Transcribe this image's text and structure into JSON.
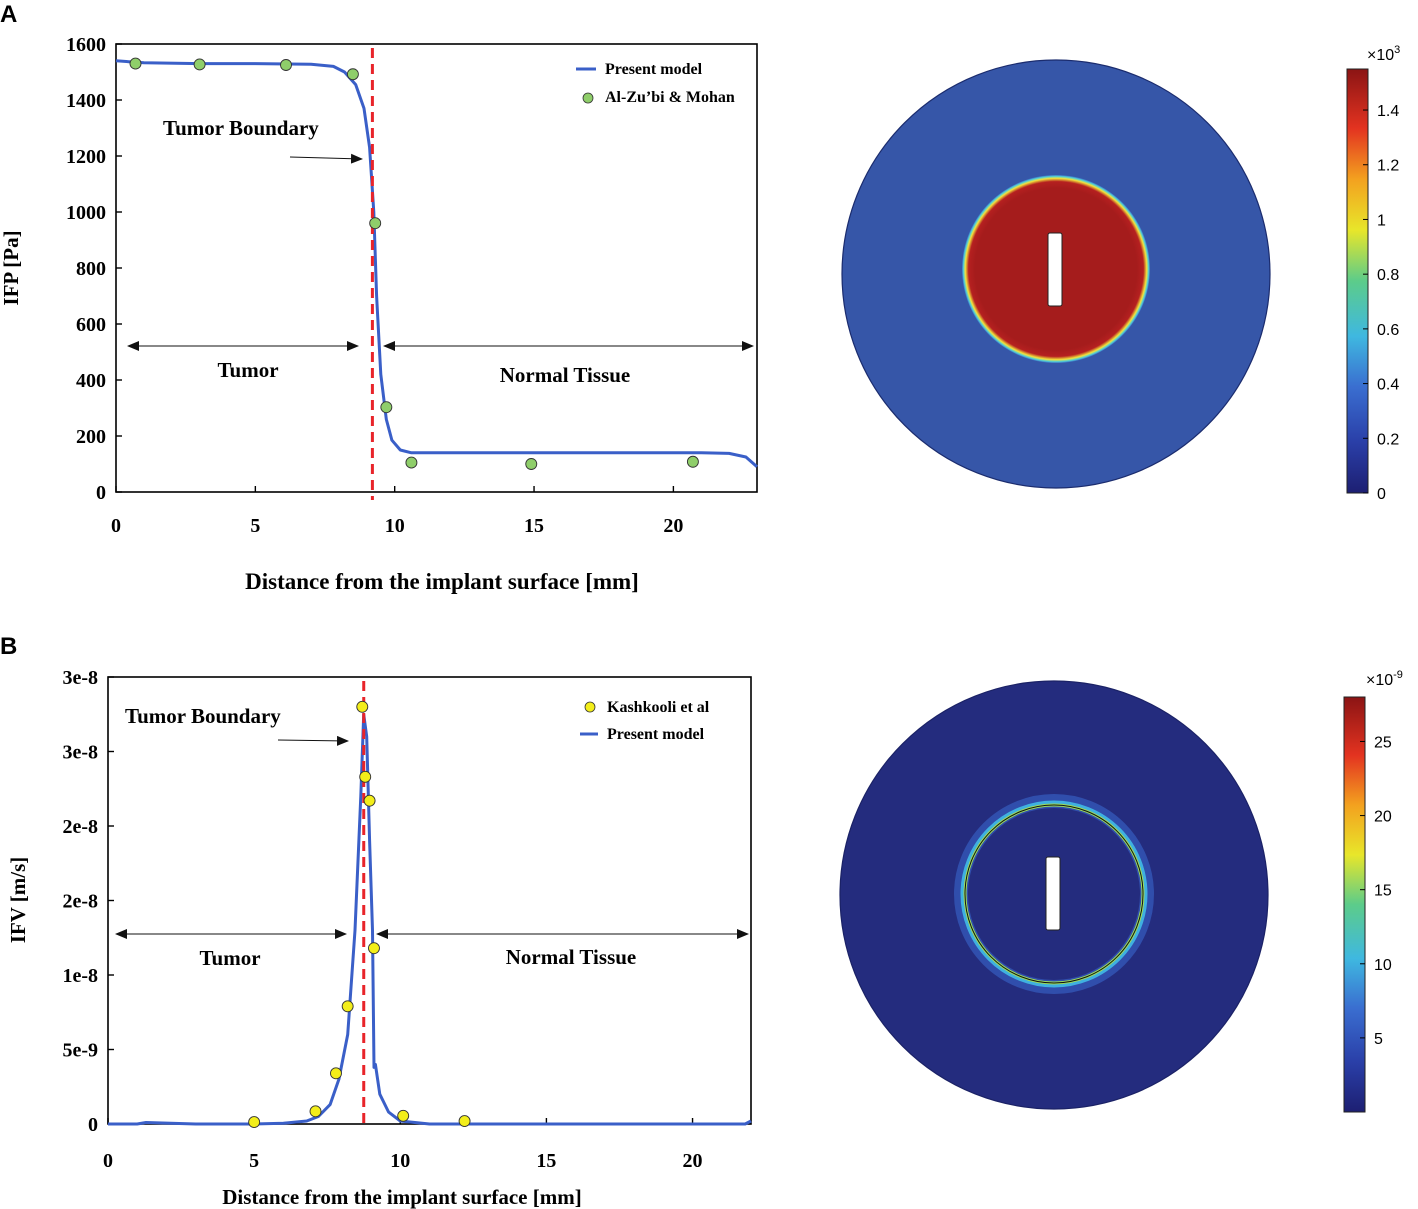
{
  "panels": {
    "a": {
      "letter": "A"
    },
    "b": {
      "letter": "B"
    }
  },
  "chart_data": [
    {
      "type": "line",
      "panel": "A",
      "xlabel": "Distance from the implant surface [mm]",
      "ylabel": "IFP [Pa]",
      "xlim": [
        0,
        23
      ],
      "ylim": [
        0,
        1600
      ],
      "xticks": [
        0,
        5,
        10,
        15,
        20
      ],
      "yticks": [
        0,
        200,
        400,
        600,
        800,
        1000,
        1200,
        1400,
        1600
      ],
      "grid": false,
      "legend_position": "top-right",
      "boundary_x": 9.2,
      "series": [
        {
          "name": "Present model",
          "kind": "line",
          "color": "#3a5fc8",
          "x": [
            0,
            1,
            3,
            5,
            7,
            7.8,
            8.2,
            8.6,
            8.9,
            9.1,
            9.25,
            9.35,
            9.5,
            9.7,
            9.9,
            10.2,
            10.6,
            12,
            15,
            18,
            21,
            22,
            22.6,
            23
          ],
          "y": [
            1540,
            1533,
            1530,
            1530,
            1528,
            1520,
            1500,
            1455,
            1370,
            1230,
            1000,
            700,
            420,
            260,
            185,
            150,
            140,
            140,
            140,
            140,
            140,
            138,
            125,
            90
          ]
        },
        {
          "name": "Al-Zu’bi &  Mohan",
          "kind": "scatter",
          "color": "#8fce6a",
          "x": [
            0.7,
            3.0,
            6.1,
            8.5,
            9.3,
            9.7,
            10.6,
            14.9,
            20.7
          ],
          "y": [
            1530,
            1527,
            1525,
            1492,
            960,
            303,
            105,
            100,
            108
          ]
        }
      ],
      "annotations": {
        "boundary": "Tumor Boundary",
        "left_region": "Tumor",
        "right_region": "Normal Tissue"
      }
    },
    {
      "type": "line",
      "panel": "B",
      "xlabel": "Distance from the implant surface [mm]",
      "ylabel": "IFV [m/s]",
      "xlim": [
        0,
        22
      ],
      "ylim": [
        0,
        3e-08
      ],
      "xticks": [
        0,
        5,
        10,
        15,
        20
      ],
      "yticks": [
        0,
        5e-09,
        1e-08,
        1.5e-08,
        2e-08,
        2.5e-08,
        3e-08
      ],
      "ytick_labels": [
        "0",
        "5e-9",
        "1e-8",
        "2e-8",
        "2e-8",
        "3e-8",
        "3e-8"
      ],
      "grid": false,
      "legend_position": "top-right",
      "boundary_x": 8.75,
      "series": [
        {
          "name": "Kashkooli et al",
          "kind": "scatter",
          "color": "#f3ee1a",
          "x": [
            5.0,
            7.1,
            7.8,
            8.2,
            8.7,
            8.8,
            8.95,
            9.1,
            10.1,
            12.2
          ],
          "y": [
            1.3e-10,
            8.5e-10,
            3.4e-09,
            7.9e-09,
            2.8e-08,
            2.33e-08,
            2.17e-08,
            1.18e-08,
            5.5e-10,
            2e-10
          ]
        },
        {
          "name": "Present model",
          "kind": "line",
          "color": "#3a5fc8",
          "x": [
            0,
            1,
            1.3,
            3,
            5,
            6,
            6.8,
            7.2,
            7.6,
            7.9,
            8.2,
            8.45,
            8.65,
            8.75,
            8.85,
            8.95,
            9.05,
            9.1,
            9.15,
            9.3,
            9.6,
            10,
            11,
            15,
            20,
            21.8,
            22
          ],
          "y": [
            0,
            0,
            1e-10,
            0,
            0,
            5e-11,
            2e-10,
            5e-10,
            1.3e-09,
            3e-09,
            6e-09,
            1.3e-08,
            2.2e-08,
            2.75e-08,
            2.6e-08,
            1.9e-08,
            1.3e-08,
            3.8e-09,
            4e-09,
            2e-09,
            8e-10,
            2e-10,
            0,
            0,
            0,
            0,
            2e-10
          ]
        }
      ],
      "annotations": {
        "boundary": "Tumor Boundary",
        "left_region": "Tumor",
        "right_region": "Normal Tissue"
      }
    }
  ],
  "colormaps": [
    {
      "panel": "A",
      "multiplier": "×10",
      "exponent": "3",
      "ticks": [
        "1.4",
        "1.2",
        "1",
        "0.8",
        "0.6",
        "0.4",
        "0.2",
        "0"
      ],
      "range": [
        0,
        1.55
      ],
      "tick_values": [
        1.4,
        1.2,
        1,
        0.8,
        0.6,
        0.4,
        0.2,
        0
      ],
      "field": {
        "tumor_level": 1.5,
        "normal_level": 0.16
      }
    },
    {
      "panel": "B",
      "multiplier": "×10",
      "exponent": "-9",
      "ticks": [
        "25",
        "20",
        "15",
        "10",
        "5"
      ],
      "range": [
        0,
        28
      ],
      "tick_values": [
        25,
        20,
        15,
        10,
        5
      ],
      "field": {
        "background_level": 0.5,
        "ring_level": 15
      }
    }
  ],
  "colors": {
    "model_line": "#3a5fc8",
    "boundary_line": "#e8242a",
    "tumor_red": "#a51c1c",
    "tissue_blue": "#3355a8",
    "tissue_dark_blue": "#242c7e"
  }
}
